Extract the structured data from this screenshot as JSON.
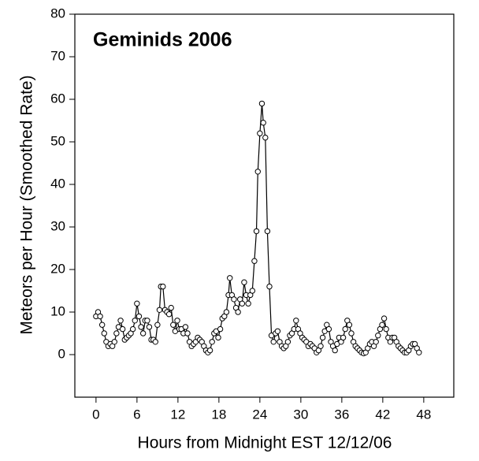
{
  "chart_data": {
    "type": "line",
    "title": "Geminids 2006",
    "xlabel": "Hours from Midnight EST 12/12/06",
    "ylabel": "Meteors per Hour (Smoothed Rate)",
    "xlim": [
      -3.1,
      52.4
    ],
    "ylim": [
      -10,
      80
    ],
    "xticks": [
      0,
      6,
      12,
      18,
      24,
      30,
      36,
      42,
      48
    ],
    "yticks": [
      0,
      10,
      20,
      30,
      40,
      50,
      60,
      70,
      80
    ],
    "color": "#000000",
    "x": [
      0.0,
      0.3,
      0.6,
      0.9,
      1.2,
      1.5,
      1.8,
      2.1,
      2.4,
      2.7,
      3.0,
      3.3,
      3.6,
      3.9,
      4.2,
      4.5,
      4.8,
      5.1,
      5.4,
      5.7,
      6.0,
      6.3,
      6.6,
      6.9,
      7.2,
      7.5,
      7.8,
      8.1,
      8.4,
      8.7,
      9.0,
      9.3,
      9.5,
      9.8,
      10.1,
      10.4,
      10.7,
      11.0,
      11.3,
      11.6,
      11.9,
      12.2,
      12.5,
      12.8,
      13.1,
      13.4,
      13.7,
      14.0,
      14.3,
      14.6,
      14.9,
      15.2,
      15.5,
      15.8,
      16.1,
      16.4,
      16.7,
      17.0,
      17.3,
      17.6,
      17.9,
      18.2,
      18.5,
      18.8,
      19.1,
      19.4,
      19.6,
      19.9,
      20.2,
      20.5,
      20.8,
      21.1,
      21.4,
      21.7,
      22.0,
      22.3,
      22.6,
      22.9,
      23.2,
      23.5,
      23.7,
      24.0,
      24.3,
      24.5,
      24.8,
      25.1,
      25.4,
      25.7,
      26.0,
      26.3,
      26.6,
      26.9,
      27.2,
      27.5,
      27.8,
      28.1,
      28.4,
      28.7,
      29.0,
      29.3,
      29.6,
      29.9,
      30.2,
      30.5,
      30.8,
      31.1,
      31.4,
      31.7,
      32.0,
      32.3,
      32.6,
      32.9,
      33.2,
      33.5,
      33.8,
      34.1,
      34.4,
      34.7,
      35.0,
      35.3,
      35.6,
      35.9,
      36.2,
      36.5,
      36.8,
      37.1,
      37.4,
      37.7,
      38.0,
      38.3,
      38.6,
      38.9,
      39.2,
      39.5,
      39.8,
      40.1,
      40.4,
      40.7,
      41.0,
      41.3,
      41.6,
      41.9,
      42.2,
      42.5,
      42.8,
      43.1,
      43.4,
      43.7,
      44.0,
      44.3,
      44.6,
      44.9,
      45.2,
      45.5,
      45.8,
      46.1,
      46.4,
      46.7,
      47.0,
      47.3
    ],
    "values": [
      9,
      10,
      9,
      7,
      5,
      3,
      2,
      2.5,
      2,
      3,
      5,
      6.5,
      8,
      6,
      3.5,
      4,
      4.5,
      5,
      6,
      8,
      12,
      9,
      6.5,
      5,
      8,
      8,
      6.5,
      3.5,
      3.5,
      3,
      7,
      10.5,
      16,
      16,
      10.5,
      10,
      9.5,
      11,
      7,
      5.5,
      8,
      6,
      6,
      5,
      6.5,
      5,
      3,
      2,
      2.5,
      3,
      4,
      3.5,
      3,
      2,
      1,
      0.5,
      1,
      3,
      5,
      5.5,
      4,
      6,
      8.5,
      9,
      10,
      14,
      18,
      14,
      13,
      11,
      10,
      13,
      12,
      17,
      14,
      12,
      14,
      15,
      22,
      29,
      43,
      52,
      59,
      54.5,
      51,
      29,
      16,
      4.5,
      3,
      5,
      5.5,
      3,
      2,
      1.5,
      2,
      3,
      4.5,
      5,
      6,
      8,
      6,
      5,
      4,
      3.5,
      3,
      2,
      2.5,
      2,
      1.5,
      0.5,
      1,
      2,
      4,
      5.5,
      7,
      6,
      3,
      2,
      1,
      2.5,
      4,
      3,
      4,
      6,
      8,
      7,
      5,
      3,
      2,
      1.5,
      1,
      0.5,
      0.3,
      0.5,
      1.5,
      2.5,
      3,
      2,
      3,
      4.5,
      6,
      7,
      8.5,
      6,
      4,
      3,
      4,
      4,
      3,
      2,
      1.5,
      1,
      0.5,
      0.5,
      1,
      2,
      2.5,
      2.5,
      1.5,
      0.5
    ]
  }
}
